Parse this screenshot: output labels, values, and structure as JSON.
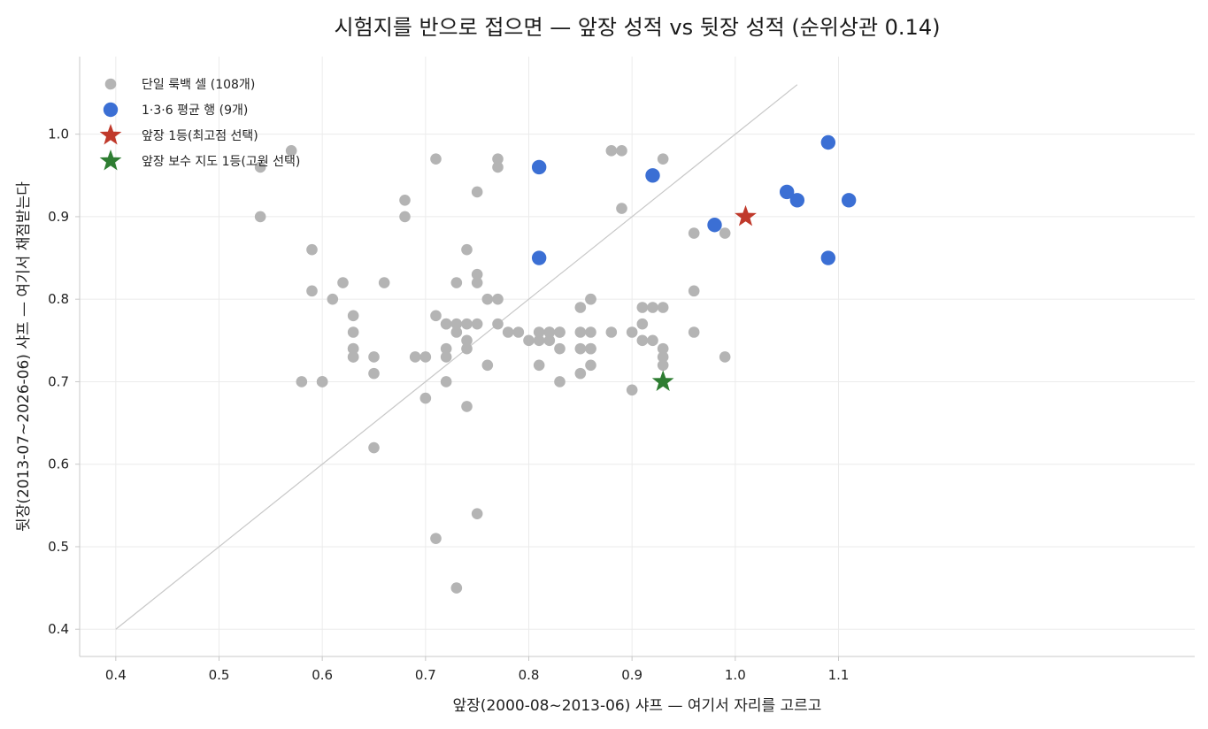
{
  "chart_data": {
    "type": "scatter",
    "title": "시험지를 반으로 접으면 — 앞장 성적 vs 뒷장 성적 (순위상관 0.14)",
    "xlabel": "앞장(2000-08~2013-06) 샤프 — 여기서 자리를 고르고",
    "ylabel": "뒷장(2013-07~2026-06) 샤프 — 여기서 채점받는다",
    "xlim": [
      0.365,
      1.445
    ],
    "ylim": [
      0.367,
      1.094
    ],
    "xticks": [
      "0.4",
      "0.5",
      "0.6",
      "0.7",
      "0.8",
      "0.9",
      "1.0",
      "1.1"
    ],
    "yticks": [
      "0.4",
      "0.5",
      "0.6",
      "0.7",
      "0.8",
      "0.9",
      "1.0"
    ],
    "grid": true,
    "legend_position": "top-left",
    "reference_line": {
      "from": [
        0.4,
        0.4
      ],
      "to": [
        1.06,
        1.06
      ],
      "color": "#c8c8c8"
    },
    "series": [
      {
        "name": "단일 룩백 셀 (108개)",
        "marker": "circle",
        "color": "#b4b4b4",
        "points": [
          [
            0.54,
            0.96
          ],
          [
            0.54,
            0.9
          ],
          [
            0.57,
            0.98
          ],
          [
            0.58,
            0.7
          ],
          [
            0.59,
            0.86
          ],
          [
            0.59,
            0.81
          ],
          [
            0.6,
            0.7
          ],
          [
            0.6,
            0.7
          ],
          [
            0.61,
            0.8
          ],
          [
            0.62,
            0.82
          ],
          [
            0.63,
            0.78
          ],
          [
            0.63,
            0.76
          ],
          [
            0.63,
            0.74
          ],
          [
            0.63,
            0.74
          ],
          [
            0.63,
            0.73
          ],
          [
            0.63,
            0.73
          ],
          [
            0.65,
            0.73
          ],
          [
            0.65,
            0.71
          ],
          [
            0.65,
            0.62
          ],
          [
            0.66,
            0.82
          ],
          [
            0.68,
            0.92
          ],
          [
            0.68,
            0.9
          ],
          [
            0.69,
            0.73
          ],
          [
            0.7,
            0.73
          ],
          [
            0.7,
            0.68
          ],
          [
            0.71,
            0.97
          ],
          [
            0.71,
            0.78
          ],
          [
            0.71,
            0.51
          ],
          [
            0.72,
            0.77
          ],
          [
            0.72,
            0.77
          ],
          [
            0.72,
            0.74
          ],
          [
            0.72,
            0.73
          ],
          [
            0.72,
            0.7
          ],
          [
            0.73,
            0.82
          ],
          [
            0.73,
            0.77
          ],
          [
            0.73,
            0.76
          ],
          [
            0.73,
            0.45
          ],
          [
            0.74,
            0.86
          ],
          [
            0.74,
            0.77
          ],
          [
            0.74,
            0.75
          ],
          [
            0.74,
            0.74
          ],
          [
            0.74,
            0.67
          ],
          [
            0.75,
            0.93
          ],
          [
            0.75,
            0.83
          ],
          [
            0.75,
            0.82
          ],
          [
            0.75,
            0.77
          ],
          [
            0.75,
            0.54
          ],
          [
            0.76,
            0.8
          ],
          [
            0.76,
            0.72
          ],
          [
            0.77,
            0.97
          ],
          [
            0.77,
            0.96
          ],
          [
            0.77,
            0.8
          ],
          [
            0.77,
            0.77
          ],
          [
            0.78,
            0.76
          ],
          [
            0.79,
            0.76
          ],
          [
            0.8,
            0.75
          ],
          [
            0.81,
            0.76
          ],
          [
            0.81,
            0.75
          ],
          [
            0.81,
            0.72
          ],
          [
            0.82,
            0.76
          ],
          [
            0.82,
            0.76
          ],
          [
            0.82,
            0.75
          ],
          [
            0.83,
            0.76
          ],
          [
            0.83,
            0.76
          ],
          [
            0.83,
            0.74
          ],
          [
            0.83,
            0.7
          ],
          [
            0.85,
            0.79
          ],
          [
            0.85,
            0.76
          ],
          [
            0.85,
            0.74
          ],
          [
            0.85,
            0.71
          ],
          [
            0.86,
            0.8
          ],
          [
            0.86,
            0.8
          ],
          [
            0.86,
            0.76
          ],
          [
            0.86,
            0.74
          ],
          [
            0.86,
            0.74
          ],
          [
            0.86,
            0.72
          ],
          [
            0.88,
            0.98
          ],
          [
            0.88,
            0.76
          ],
          [
            0.89,
            0.98
          ],
          [
            0.89,
            0.91
          ],
          [
            0.9,
            0.76
          ],
          [
            0.9,
            0.69
          ],
          [
            0.91,
            0.79
          ],
          [
            0.91,
            0.77
          ],
          [
            0.91,
            0.75
          ],
          [
            0.92,
            0.79
          ],
          [
            0.92,
            0.75
          ],
          [
            0.93,
            0.97
          ],
          [
            0.93,
            0.79
          ],
          [
            0.93,
            0.74
          ],
          [
            0.93,
            0.73
          ],
          [
            0.93,
            0.72
          ],
          [
            0.96,
            0.88
          ],
          [
            0.96,
            0.81
          ],
          [
            0.96,
            0.76
          ],
          [
            0.99,
            0.88
          ],
          [
            0.99,
            0.73
          ]
        ]
      },
      {
        "name": "1·3·6 평균 행 (9개)",
        "marker": "circle",
        "color": "#3b6fd4",
        "points": [
          [
            0.81,
            0.96
          ],
          [
            0.81,
            0.85
          ],
          [
            0.92,
            0.95
          ],
          [
            0.98,
            0.89
          ],
          [
            1.05,
            0.93
          ],
          [
            1.06,
            0.92
          ],
          [
            1.09,
            0.99
          ],
          [
            1.09,
            0.85
          ],
          [
            1.11,
            0.92
          ]
        ]
      },
      {
        "name": "앞장 1등(최고점 선택)",
        "marker": "star",
        "color": "#c0392b",
        "points": [
          [
            1.01,
            0.9
          ]
        ]
      },
      {
        "name": "앞장 보수 지도 1등(고원 선택)",
        "marker": "star",
        "color": "#2e7d32",
        "points": [
          [
            0.93,
            0.7
          ]
        ]
      }
    ]
  }
}
